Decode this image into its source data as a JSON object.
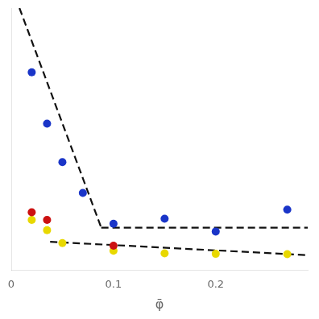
{
  "chart_data": {
    "type": "scatter",
    "xlabel": "φ̄",
    "xlim": [
      0.0,
      0.29
    ],
    "xticks": [
      0.0,
      0.1,
      0.2
    ],
    "ylim": [
      0.08,
      1.1
    ],
    "tick_labels": "x",
    "grid": false,
    "series": [
      {
        "type": "line",
        "line_style": "dashed",
        "color": "#111111",
        "x": [
          0.008,
          0.088
        ],
        "values": [
          1.1,
          0.245
        ]
      },
      {
        "type": "line",
        "line_style": "dashed",
        "color": "#111111",
        "x": [
          0.088,
          0.29
        ],
        "values": [
          0.245,
          0.245
        ]
      },
      {
        "type": "line",
        "line_style": "dashed",
        "color": "#111111",
        "x": [
          0.038,
          0.29
        ],
        "values": [
          0.19,
          0.138
        ]
      },
      {
        "type": "scatter",
        "marker": "circle",
        "color": "#1a35c8",
        "x": [
          0.02,
          0.035,
          0.05,
          0.07,
          0.1,
          0.15,
          0.2,
          0.27
        ],
        "values": [
          0.85,
          0.65,
          0.5,
          0.38,
          0.26,
          0.28,
          0.23,
          0.315
        ]
      },
      {
        "type": "scatter",
        "marker": "circle",
        "color": "#cc1111",
        "x": [
          0.02,
          0.035,
          0.1
        ],
        "values": [
          0.305,
          0.275,
          0.175
        ]
      },
      {
        "type": "scatter",
        "marker": "circle",
        "color": "#e8d800",
        "x": [
          0.02,
          0.035,
          0.05,
          0.1,
          0.15,
          0.2,
          0.27
        ],
        "values": [
          0.275,
          0.235,
          0.185,
          0.155,
          0.145,
          0.143,
          0.142
        ]
      }
    ]
  }
}
